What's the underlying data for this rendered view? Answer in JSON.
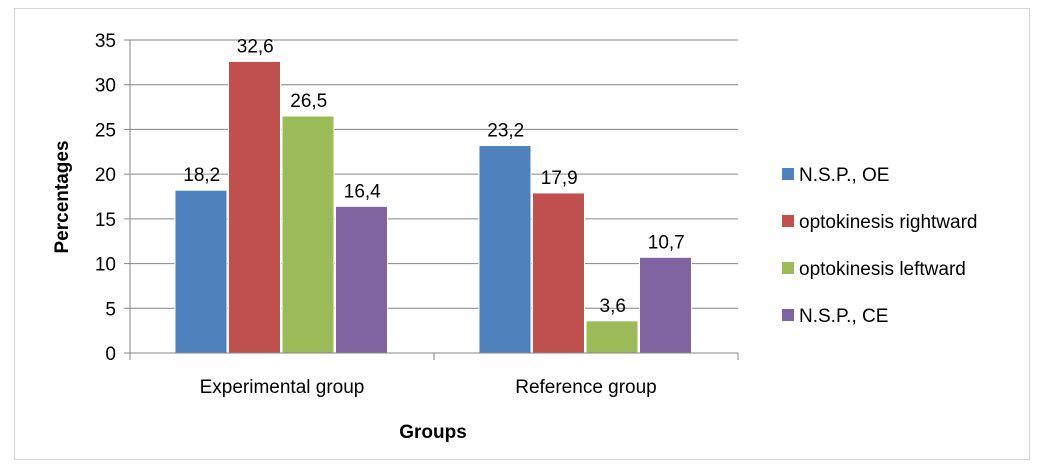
{
  "chart_data": {
    "type": "bar",
    "xlabel": "Groups",
    "ylabel": "Percentages",
    "categories": [
      "Experimental group",
      "Reference group"
    ],
    "ylim": [
      0,
      35
    ],
    "yticks": [
      "0",
      "5",
      "10",
      "15",
      "20",
      "25",
      "30",
      "35"
    ],
    "ytick_values": [
      0,
      5,
      10,
      15,
      20,
      25,
      30,
      35
    ],
    "grid": true,
    "legend_position": "right",
    "series": [
      {
        "name": "N.S.P., OE",
        "color": "#4f81bd",
        "values": [
          18.2,
          23.2
        ],
        "labels": [
          "18,2",
          "23,2"
        ]
      },
      {
        "name": "optokinesis rightward",
        "color": "#c0504d",
        "values": [
          32.6,
          17.9
        ],
        "labels": [
          "32,6",
          "17,9"
        ]
      },
      {
        "name": "optokinesis leftward",
        "color": "#9bbb59",
        "values": [
          26.5,
          3.6
        ],
        "labels": [
          "26,5",
          "3,6"
        ]
      },
      {
        "name": "N.S.P., CE",
        "color": "#8064a2",
        "values": [
          16.4,
          10.7
        ],
        "labels": [
          "16,4",
          "10,7"
        ]
      }
    ]
  }
}
